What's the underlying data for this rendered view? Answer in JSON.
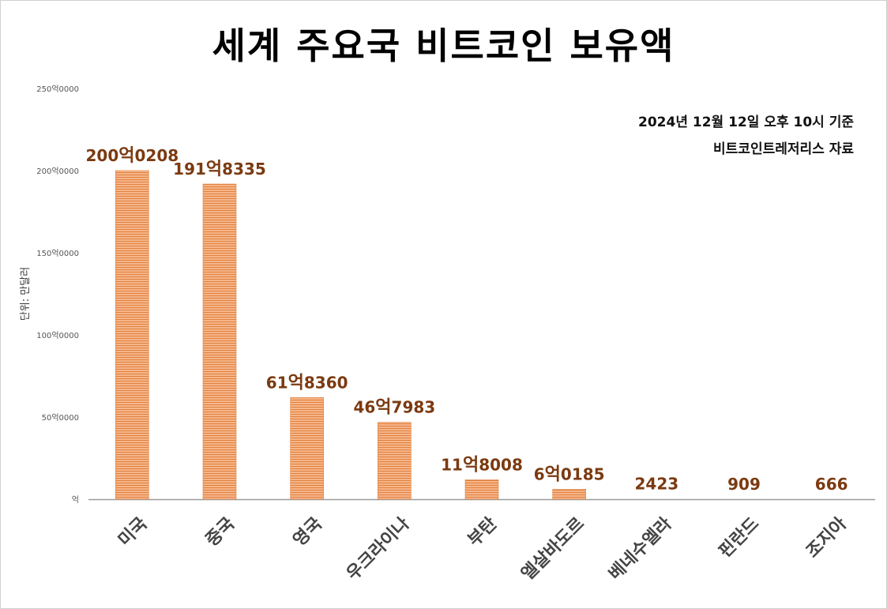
{
  "header": {
    "title": "세계 주요국 비트코인 보유액",
    "date_note": "2024년 12월 12일 오후 10시 기준",
    "source_note": "비트코인트레저리스 자료"
  },
  "colors": {
    "bar_light": "#f6b58a",
    "bar_dark": "#e0813e",
    "label": "#7b3a10",
    "axis": "#9a9a9a"
  },
  "chart_data": {
    "type": "bar",
    "title": "세계 주요국 비트코인 보유액",
    "ylabel": "단위: 만달러",
    "xlabel": "",
    "ylim": [
      0,
      2500000
    ],
    "yticks": [
      0,
      500000,
      1000000,
      1500000,
      2000000,
      2500000
    ],
    "ytick_labels": [
      "억",
      "50억0000",
      "100억0000",
      "150억0000",
      "200억0000",
      "250억0000"
    ],
    "categories": [
      "미국",
      "중국",
      "영국",
      "우크라이나",
      "부탄",
      "엘살바도르",
      "베네수엘라",
      "핀란드",
      "조지아"
    ],
    "values": [
      2000208,
      1918335,
      618360,
      467983,
      118008,
      60185,
      2423,
      909,
      666
    ],
    "data_labels": [
      {
        "pre": "200",
        "unit": "억",
        "post": "0208"
      },
      {
        "pre": "191",
        "unit": "억",
        "post": "8335"
      },
      {
        "pre": "61",
        "unit": "억",
        "post": "8360"
      },
      {
        "pre": "46",
        "unit": "억",
        "post": "7983"
      },
      {
        "pre": "11",
        "unit": "억",
        "post": "8008"
      },
      {
        "pre": "6",
        "unit": "억",
        "post": "0185"
      },
      {
        "pre": "",
        "unit": "",
        "post": "2423"
      },
      {
        "pre": "",
        "unit": "",
        "post": "909"
      },
      {
        "pre": "",
        "unit": "",
        "post": "666"
      }
    ],
    "grid": false,
    "legend": "none"
  }
}
